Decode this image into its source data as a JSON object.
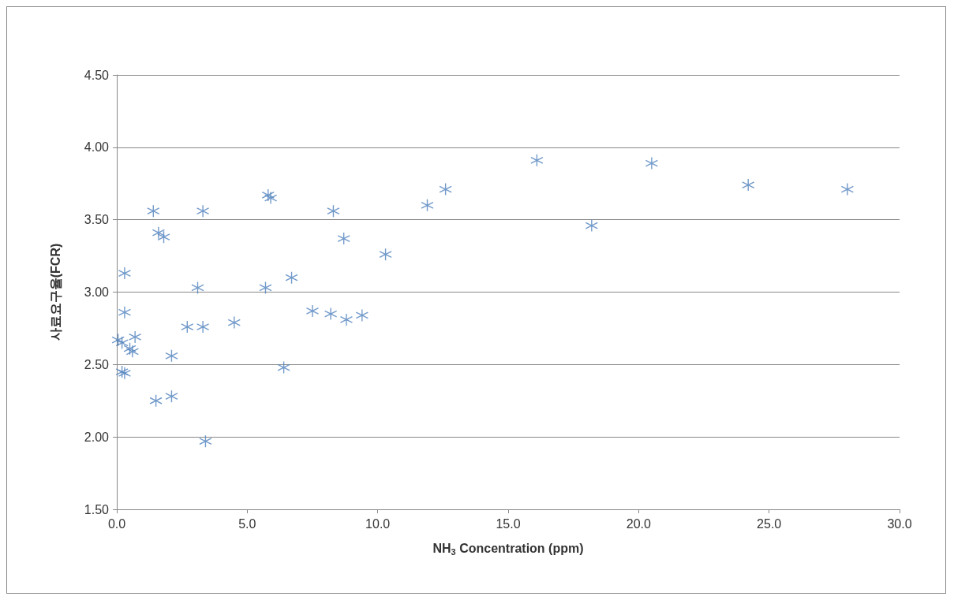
{
  "chart_data": {
    "type": "scatter",
    "xlabel": "NH$_{3}$ Concentration (ppm)",
    "ylabel": "사료요구율(FCR)",
    "x": [
      1.4,
      3.3,
      5.8,
      5.9,
      8.3,
      1.6,
      1.8,
      8.7,
      10.3,
      0.3,
      3.1,
      5.7,
      6.7,
      0.3,
      7.5,
      8.2,
      8.8,
      9.4,
      2.7,
      3.3,
      4.5,
      0.05,
      0.2,
      0.7,
      0.5,
      0.6,
      2.1,
      0.2,
      0.3,
      6.4,
      1.5,
      2.1,
      3.4,
      11.9,
      12.6,
      16.1,
      18.2,
      20.5,
      24.2,
      28.0
    ],
    "values": [
      3.56,
      3.56,
      3.67,
      3.65,
      3.56,
      3.41,
      3.38,
      3.37,
      3.26,
      3.13,
      3.03,
      3.03,
      3.1,
      2.86,
      2.87,
      2.85,
      2.81,
      2.84,
      2.76,
      2.76,
      2.79,
      2.67,
      2.65,
      2.69,
      2.61,
      2.59,
      2.56,
      2.45,
      2.44,
      2.48,
      2.25,
      2.28,
      1.97,
      3.6,
      3.71,
      3.91,
      3.46,
      3.89,
      3.74,
      3.71
    ],
    "color": "#4f81bd",
    "marker": "cross",
    "grid": "y",
    "xlim": [
      0,
      30
    ],
    "xticks": [
      {
        "value": 0,
        "label": "0.0"
      },
      {
        "value": 5,
        "label": "5.0"
      },
      {
        "value": 10,
        "label": "10.0"
      },
      {
        "value": 15,
        "label": "15.0"
      },
      {
        "value": 20,
        "label": "20.0"
      },
      {
        "value": 25,
        "label": "25.0"
      },
      {
        "value": 30,
        "label": "30.0"
      }
    ],
    "ylim": [
      1.5,
      4.5
    ],
    "yticks": [
      {
        "value": 1.5,
        "label": "1.50"
      },
      {
        "value": 2,
        "label": "2.00"
      },
      {
        "value": 2.5,
        "label": "2.50"
      },
      {
        "value": 3,
        "label": "3.00"
      },
      {
        "value": 3.5,
        "label": "3.50"
      },
      {
        "value": 4,
        "label": "4.00"
      },
      {
        "value": 4.5,
        "label": "4.50"
      }
    ]
  }
}
